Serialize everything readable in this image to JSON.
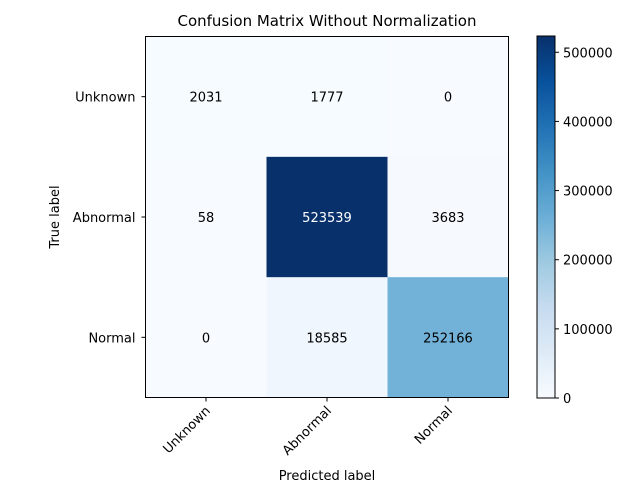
{
  "chart_data": {
    "type": "heatmap",
    "title": "Confusion Matrix Without Normalization",
    "xlabel": "Predicted label",
    "ylabel": "True label",
    "x_categories": [
      "Unknown",
      "Abnormal",
      "Normal"
    ],
    "y_categories": [
      "Unknown",
      "Abnormal",
      "Normal"
    ],
    "values": [
      [
        2031,
        1777,
        0
      ],
      [
        58,
        523539,
        3683
      ],
      [
        0,
        18585,
        252166
      ]
    ],
    "colormap": "Blues",
    "colorbar": {
      "min": 0,
      "max": 523539,
      "ticks": [
        0,
        100000,
        200000,
        300000,
        400000,
        500000
      ],
      "tick_labels": [
        "0",
        "100000",
        "200000",
        "300000",
        "400000",
        "500000"
      ]
    },
    "grid": false,
    "colors": {
      "low": "#f7fbff",
      "high": "#08306b"
    }
  }
}
